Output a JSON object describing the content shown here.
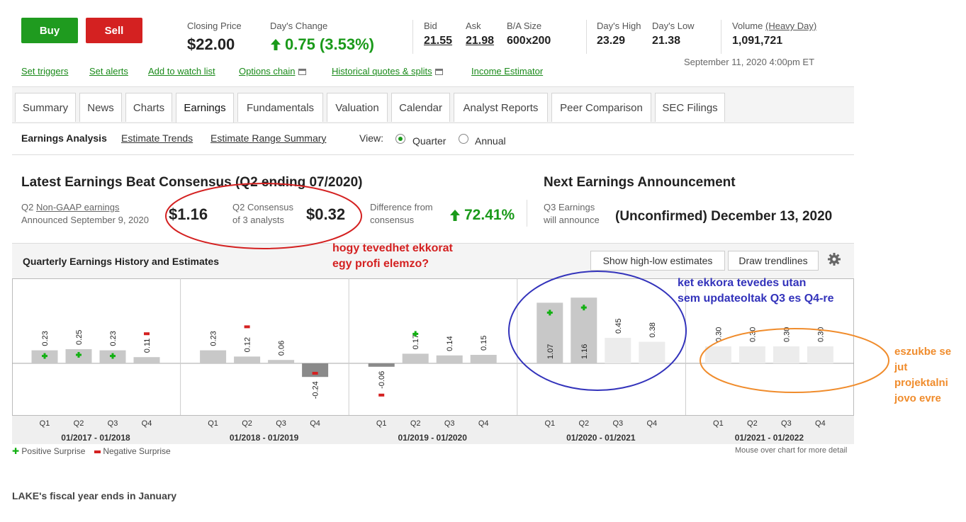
{
  "actions": {
    "buy": "Buy",
    "sell": "Sell"
  },
  "quote": {
    "closing_label": "Closing Price",
    "closing_value": "$22.00",
    "change_label": "Day's Change",
    "change_value": "0.75 (3.53%)",
    "bid_label": "Bid",
    "bid_value": "21.55",
    "ask_label": "Ask",
    "ask_value": "21.98",
    "basize_label": "B/A Size",
    "basize_value": "600x200",
    "high_label": "Day's High",
    "high_value": "23.29",
    "low_label": "Day's Low",
    "low_value": "21.38",
    "volume_label": "Volume",
    "volume_link": "(Heavy Day)",
    "volume_value": "1,091,721",
    "timestamp": "September 11, 2020 4:00pm ET"
  },
  "links": [
    "Set triggers",
    "Set alerts",
    "Add to watch list",
    "Options chain",
    "Historical quotes & splits",
    "Income Estimator"
  ],
  "tabs": [
    "Summary",
    "News",
    "Charts",
    "Earnings",
    "Fundamentals",
    "Valuation",
    "Calendar",
    "Analyst Reports",
    "Peer Comparison",
    "SEC Filings"
  ],
  "subnav": {
    "analysis": "Earnings Analysis",
    "trends": "Estimate Trends",
    "range": "Estimate Range Summary",
    "view_label": "View:",
    "quarter": "Quarter",
    "annual": "Annual"
  },
  "latest": {
    "title": "Latest Earnings Beat Consensus (Q2 ending 07/2020)",
    "line1_prefix": "Q2 ",
    "line1_link": "Non-GAAP earnings",
    "line2": "Announced September 9, 2020",
    "eps": "$1.16",
    "cons_line1": "Q2 Consensus",
    "cons_line2": "of 3 analysts",
    "cons_value": "$0.32",
    "diff_line1": "Difference from",
    "diff_line2": "consensus",
    "diff_value": "72.41%"
  },
  "next": {
    "title": "Next Earnings Announcement",
    "line1": "Q3 Earnings",
    "line2": "will announce",
    "value": "(Unconfirmed) December 13, 2020"
  },
  "chart_header": {
    "title": "Quarterly Earnings History and Estimates",
    "highlow": "Show high-low estimates",
    "trend": "Draw trendlines"
  },
  "chart_data": {
    "type": "bar",
    "title": "Quarterly Earnings History and Estimates",
    "quarter_labels": [
      "Q1",
      "Q2",
      "Q3",
      "Q4"
    ],
    "years": [
      {
        "label": "01/2017 - 01/2018",
        "values": [
          0.23,
          0.25,
          0.23,
          0.11
        ],
        "surprise": [
          "positive",
          "positive",
          "positive",
          "negative"
        ],
        "actual": [
          true,
          true,
          true,
          true
        ]
      },
      {
        "label": "01/2018 - 01/2019",
        "values": [
          0.23,
          0.12,
          0.06,
          -0.24
        ],
        "surprise": [
          "none",
          "negative",
          "none",
          "negative"
        ],
        "actual": [
          true,
          true,
          true,
          true
        ]
      },
      {
        "label": "01/2019 - 01/2020",
        "values": [
          -0.06,
          0.17,
          0.14,
          0.15
        ],
        "surprise": [
          "negative",
          "positive",
          "none",
          "none"
        ],
        "actual": [
          true,
          true,
          true,
          true
        ]
      },
      {
        "label": "01/2020 - 01/2021",
        "values": [
          1.07,
          1.16,
          0.45,
          0.38
        ],
        "surprise": [
          "positive",
          "positive",
          "none",
          "none"
        ],
        "actual": [
          true,
          true,
          false,
          false
        ]
      },
      {
        "label": "01/2021 - 01/2022",
        "values": [
          0.3,
          0.3,
          0.3,
          0.3
        ],
        "surprise": [
          "none",
          "none",
          "none",
          "none"
        ],
        "actual": [
          false,
          false,
          false,
          false
        ]
      }
    ],
    "value_labels": [
      [
        "0.23",
        "0.25",
        "0.23",
        "0.11"
      ],
      [
        "0.23",
        "0.12",
        "0.06",
        "-0.24"
      ],
      [
        "-0.06",
        "0.17",
        "0.14",
        "0.15"
      ],
      [
        "1.07",
        "1.16",
        "0.45",
        "0.38"
      ],
      [
        "0.30",
        "0.30",
        "0.30",
        "0.30"
      ]
    ],
    "legend": {
      "positive": "Positive Surprise",
      "negative": "Negative Surprise"
    },
    "note": "Mouse over chart for more detail",
    "colors": {
      "actual": "#c8c8c8",
      "estimate": "#ececec",
      "negative_actual": "#8a8a8a",
      "positive": "#13b013",
      "negative": "#d42121"
    }
  },
  "footer": "LAKE's fiscal year ends in January",
  "annotations": {
    "red": [
      "hogy tevedhet ekkorat",
      "egy profi elemzo?"
    ],
    "blue": [
      "ket ekkora tevedes utan",
      "sem updateoltak Q3 es Q4-re"
    ],
    "orange": [
      "eszukbe se",
      "jut",
      "projektalni",
      "jovo evre"
    ]
  },
  "icons": {
    "up_arrow": "up-arrow-icon",
    "gear": "gear-icon",
    "external": "external-window-icon"
  },
  "theme": {
    "green": "#1a9a1a",
    "red": "#d42121",
    "blue": "#3333bb",
    "orange": "#f08c2c"
  }
}
